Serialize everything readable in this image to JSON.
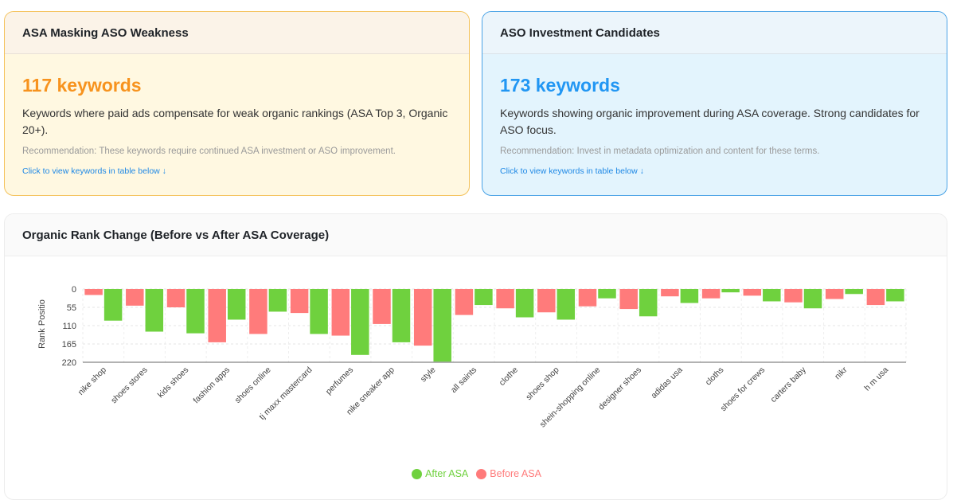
{
  "cards": [
    {
      "title": "ASA Masking ASO Weakness",
      "count": "117 keywords",
      "description": "Keywords where paid ads compensate for weak organic rankings (ASA Top 3, Organic 20+).",
      "recommendation": "Recommendation: These keywords require continued ASA investment or ASO improvement.",
      "link": "Click to view keywords in table below ↓"
    },
    {
      "title": "ASO Investment Candidates",
      "count": "173 keywords",
      "description": "Keywords showing organic improvement during ASA coverage. Strong candidates for ASO focus.",
      "recommendation": "Recommendation: Invest in metadata optimization and content for these terms.",
      "link": "Click to view keywords in table below ↓"
    }
  ],
  "chart_data": {
    "type": "bar",
    "title": "Organic Rank Change (Before vs After ASA Coverage)",
    "xlabel": "",
    "ylabel": "Rank Positio",
    "ylim": [
      0,
      220
    ],
    "y_ticks": [
      0,
      55,
      110,
      165,
      220
    ],
    "y_inverted": true,
    "grid": true,
    "legend_position": "bottom-center",
    "colors": {
      "before": "#ff7b7b",
      "after": "#6fd13e"
    },
    "categories": [
      "nike shop",
      "shoes stores",
      "kids shoes",
      "fashion apps",
      "shoes online",
      "tj maxx mastercard",
      "perfumes",
      "nike sneaker app",
      "style",
      "all saints",
      "clothe",
      "shoes shop",
      "shein-shopping online",
      "designer shoes",
      "adidas usa",
      "cloths",
      "shoes for crews",
      "carters baby",
      "nikr",
      "h m usa"
    ],
    "series": [
      {
        "name": "Before ASA",
        "values": [
          18,
          50,
          55,
          160,
          135,
          72,
          140,
          105,
          170,
          78,
          58,
          70,
          52,
          60,
          22,
          28,
          20,
          40,
          30,
          48
        ]
      },
      {
        "name": "After ASA",
        "values": [
          95,
          128,
          133,
          92,
          68,
          135,
          198,
          160,
          218,
          48,
          85,
          92,
          28,
          82,
          42,
          10,
          37,
          58,
          15,
          37
        ]
      }
    ],
    "legend": [
      "After ASA",
      "Before ASA"
    ]
  }
}
